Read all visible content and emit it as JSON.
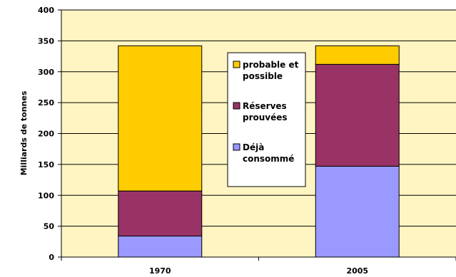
{
  "chart_data": {
    "type": "bar",
    "stacked": true,
    "categories": [
      "1970",
      "2005"
    ],
    "series": [
      {
        "name": "Déjà consommé",
        "label_lines": [
          "Déjà",
          "consommé"
        ],
        "color": "#9999FF",
        "values": [
          34,
          147
        ]
      },
      {
        "name": "Réserves prouvées",
        "label_lines": [
          "Réserves",
          "prouvées"
        ],
        "color": "#993366",
        "values": [
          73,
          165
        ]
      },
      {
        "name": "probable et possible",
        "label_lines": [
          "probable et",
          "possible"
        ],
        "color": "#FFCC00",
        "values": [
          235,
          30
        ]
      }
    ],
    "ylabel": "Milliards de tonnes",
    "ylim": [
      0,
      400
    ],
    "yticks": [
      0,
      50,
      100,
      150,
      200,
      250,
      300,
      350,
      400
    ],
    "grid": true,
    "legend_position": "center",
    "plot_background": "#FFF5C2"
  }
}
